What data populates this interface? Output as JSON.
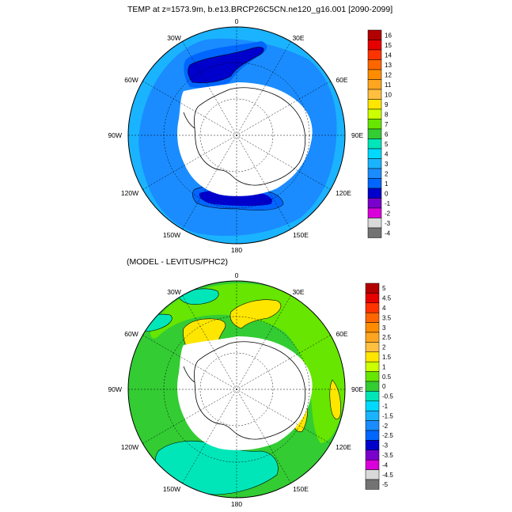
{
  "top_panel": {
    "title": "TEMP at z=1573.9m, b.e13.BRCP26C5CN.ne120_g16.001 [2090-2099]",
    "lon_labels": [
      "0",
      "30E",
      "60E",
      "90E",
      "120E",
      "150E",
      "180",
      "150W",
      "120W",
      "90W",
      "60W",
      "30W"
    ],
    "colorbar": {
      "ticks": [
        "16",
        "15",
        "14",
        "13",
        "12",
        "11",
        "10",
        "9",
        "8",
        "7",
        "6",
        "5",
        "4",
        "3",
        "2",
        "1",
        "0",
        "-1",
        "-2",
        "-3",
        "-4"
      ],
      "colors": [
        "#b20000",
        "#e60000",
        "#ff3300",
        "#ff6600",
        "#ff8c00",
        "#ffa520",
        "#ffbf40",
        "#ffe600",
        "#ccff00",
        "#66e600",
        "#33cc33",
        "#00e6b8",
        "#00d9ff",
        "#1ab3ff",
        "#1a8cff",
        "#0066ff",
        "#0000cc",
        "#7a00cc",
        "#d900d9",
        "#d9d9d9",
        "#737373"
      ]
    }
  },
  "bottom_panel": {
    "title": "(MODEL - LEVITUS/PHC2)",
    "lon_labels": [
      "0",
      "30E",
      "60E",
      "90E",
      "120E",
      "150E",
      "180",
      "150W",
      "120W",
      "90W",
      "60W",
      "30W"
    ],
    "colorbar": {
      "ticks": [
        "5",
        "4.5",
        "4",
        "3.5",
        "3",
        "2.5",
        "2",
        "1.5",
        "1",
        "0.5",
        "0",
        "-0.5",
        "-1",
        "-1.5",
        "-2",
        "-2.5",
        "-3",
        "-3.5",
        "-4",
        "-4.5",
        "-5"
      ],
      "colors": [
        "#b20000",
        "#e60000",
        "#ff3300",
        "#ff6600",
        "#ff8c00",
        "#ffa520",
        "#ffbf40",
        "#ffe600",
        "#ccff00",
        "#66e600",
        "#33cc33",
        "#00e6b8",
        "#00d9ff",
        "#1ab3ff",
        "#1a8cff",
        "#0066ff",
        "#0000cc",
        "#7a00cc",
        "#d900d9",
        "#d9d9d9",
        "#737373"
      ]
    }
  }
}
